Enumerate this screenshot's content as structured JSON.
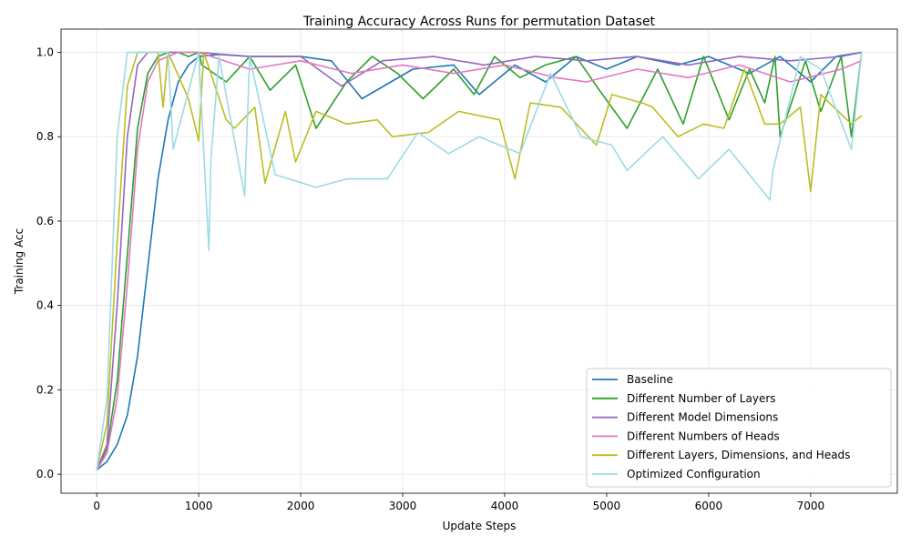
{
  "chart_data": {
    "type": "line",
    "title": "Training Accuracy Across Runs for permutation Dataset",
    "xlabel": "Update Steps",
    "ylabel": "Training Acc",
    "xlim": [
      -350,
      7850
    ],
    "ylim": [
      -0.045,
      1.055
    ],
    "xticks": [
      0,
      1000,
      2000,
      3000,
      4000,
      5000,
      6000,
      7000
    ],
    "xtick_labels": [
      "0",
      "1000",
      "2000",
      "3000",
      "4000",
      "5000",
      "6000",
      "7000"
    ],
    "yticks": [
      0.0,
      0.2,
      0.4,
      0.6,
      0.8,
      1.0
    ],
    "ytick_labels": [
      "0.0",
      "0.2",
      "0.4",
      "0.6",
      "0.8",
      "1.0"
    ],
    "grid": true,
    "legend_position": "lower-right",
    "series": [
      {
        "name": "Baseline",
        "color": "#1f77b4",
        "x": [
          0,
          100,
          200,
          300,
          400,
          500,
          600,
          700,
          800,
          900,
          1000,
          1200,
          1500,
          2000,
          2300,
          2600,
          3100,
          3500,
          3750,
          4100,
          4400,
          4700,
          5000,
          5300,
          5700,
          6000,
          6400,
          6700,
          7000,
          7250,
          7500
        ],
        "y": [
          0.01,
          0.03,
          0.07,
          0.14,
          0.28,
          0.49,
          0.7,
          0.84,
          0.93,
          0.97,
          0.99,
          0.995,
          0.99,
          0.99,
          0.98,
          0.89,
          0.96,
          0.97,
          0.9,
          0.97,
          0.93,
          0.99,
          0.96,
          0.99,
          0.97,
          0.99,
          0.95,
          0.99,
          0.93,
          0.99,
          1.0
        ]
      },
      {
        "name": "Different Number of Layers",
        "color": "#2ca02c",
        "x": [
          0,
          100,
          200,
          300,
          400,
          500,
          600,
          700,
          800,
          900,
          1000,
          1030,
          1270,
          1500,
          1700,
          1950,
          2150,
          2450,
          2700,
          2950,
          3200,
          3500,
          3700,
          3900,
          4150,
          4400,
          4700,
          4900,
          5200,
          5500,
          5750,
          5950,
          6200,
          6400,
          6550,
          6650,
          6700,
          6950,
          7100,
          7300,
          7400,
          7500
        ],
        "y": [
          0.01,
          0.06,
          0.22,
          0.52,
          0.82,
          0.95,
          0.99,
          1.0,
          1.0,
          0.99,
          1.0,
          0.97,
          0.93,
          0.99,
          0.91,
          0.97,
          0.82,
          0.93,
          0.99,
          0.95,
          0.89,
          0.96,
          0.9,
          0.99,
          0.94,
          0.97,
          0.99,
          0.92,
          0.82,
          0.96,
          0.83,
          0.99,
          0.84,
          0.96,
          0.88,
          0.99,
          0.8,
          0.98,
          0.86,
          0.99,
          0.8,
          1.0
        ]
      },
      {
        "name": "Different Model Dimensions",
        "color": "#9467bd",
        "x": [
          0,
          100,
          200,
          300,
          400,
          500,
          600,
          800,
          1000,
          1500,
          2000,
          2400,
          2800,
          3300,
          3800,
          4300,
          4800,
          5300,
          5800,
          6300,
          6800,
          7300,
          7500
        ],
        "y": [
          0.01,
          0.07,
          0.4,
          0.8,
          0.97,
          1.0,
          1.0,
          1.0,
          1.0,
          0.99,
          0.99,
          0.92,
          0.98,
          0.99,
          0.97,
          0.99,
          0.98,
          0.99,
          0.97,
          0.99,
          0.98,
          0.99,
          1.0
        ]
      },
      {
        "name": "Different Numbers of Heads",
        "color": "#e377c2",
        "x": [
          0,
          100,
          200,
          300,
          400,
          500,
          600,
          800,
          1000,
          1500,
          2000,
          2500,
          3000,
          3500,
          4000,
          4500,
          4800,
          5300,
          5800,
          6300,
          6800,
          7300,
          7500
        ],
        "y": [
          0.01,
          0.05,
          0.18,
          0.45,
          0.77,
          0.93,
          0.98,
          1.0,
          1.0,
          0.96,
          0.98,
          0.95,
          0.97,
          0.95,
          0.97,
          0.94,
          0.93,
          0.96,
          0.94,
          0.97,
          0.93,
          0.96,
          0.98
        ]
      },
      {
        "name": "Different Layers, Dimensions, and Heads",
        "color": "#bcbd22",
        "x": [
          0,
          100,
          200,
          300,
          400,
          500,
          600,
          650,
          700,
          900,
          1000,
          1050,
          1270,
          1350,
          1550,
          1650,
          1850,
          1950,
          2150,
          2450,
          2750,
          2900,
          3250,
          3550,
          3950,
          4100,
          4250,
          4550,
          4900,
          5050,
          5350,
          5450,
          5700,
          5950,
          6150,
          6350,
          6550,
          6700,
          6900,
          7000,
          7100,
          7400,
          7500
        ],
        "y": [
          0.01,
          0.12,
          0.55,
          0.92,
          1.0,
          1.0,
          1.0,
          0.87,
          1.0,
          0.89,
          0.79,
          1.0,
          0.84,
          0.82,
          0.87,
          0.69,
          0.86,
          0.74,
          0.86,
          0.83,
          0.84,
          0.8,
          0.81,
          0.86,
          0.84,
          0.7,
          0.88,
          0.87,
          0.78,
          0.9,
          0.88,
          0.87,
          0.8,
          0.83,
          0.82,
          0.96,
          0.83,
          0.83,
          0.87,
          0.67,
          0.9,
          0.83,
          0.85
        ]
      },
      {
        "name": "Optimized Configuration",
        "color": "#9edae5",
        "x": [
          0,
          100,
          200,
          300,
          400,
          500,
          700,
          750,
          1000,
          1100,
          1120,
          1200,
          1450,
          1500,
          1750,
          2150,
          2450,
          2850,
          3150,
          3450,
          3750,
          4150,
          4450,
          4750,
          5050,
          5200,
          5550,
          5900,
          6200,
          6600,
          6630,
          6900,
          7100,
          7400,
          7500
        ],
        "y": [
          0.01,
          0.18,
          0.8,
          1.0,
          1.0,
          1.0,
          1.0,
          0.77,
          1.0,
          0.53,
          0.75,
          0.99,
          0.66,
          0.99,
          0.71,
          0.68,
          0.7,
          0.7,
          0.81,
          0.76,
          0.8,
          0.76,
          0.95,
          0.8,
          0.78,
          0.72,
          0.8,
          0.7,
          0.77,
          0.65,
          0.72,
          0.99,
          0.96,
          0.77,
          1.0
        ]
      }
    ]
  }
}
